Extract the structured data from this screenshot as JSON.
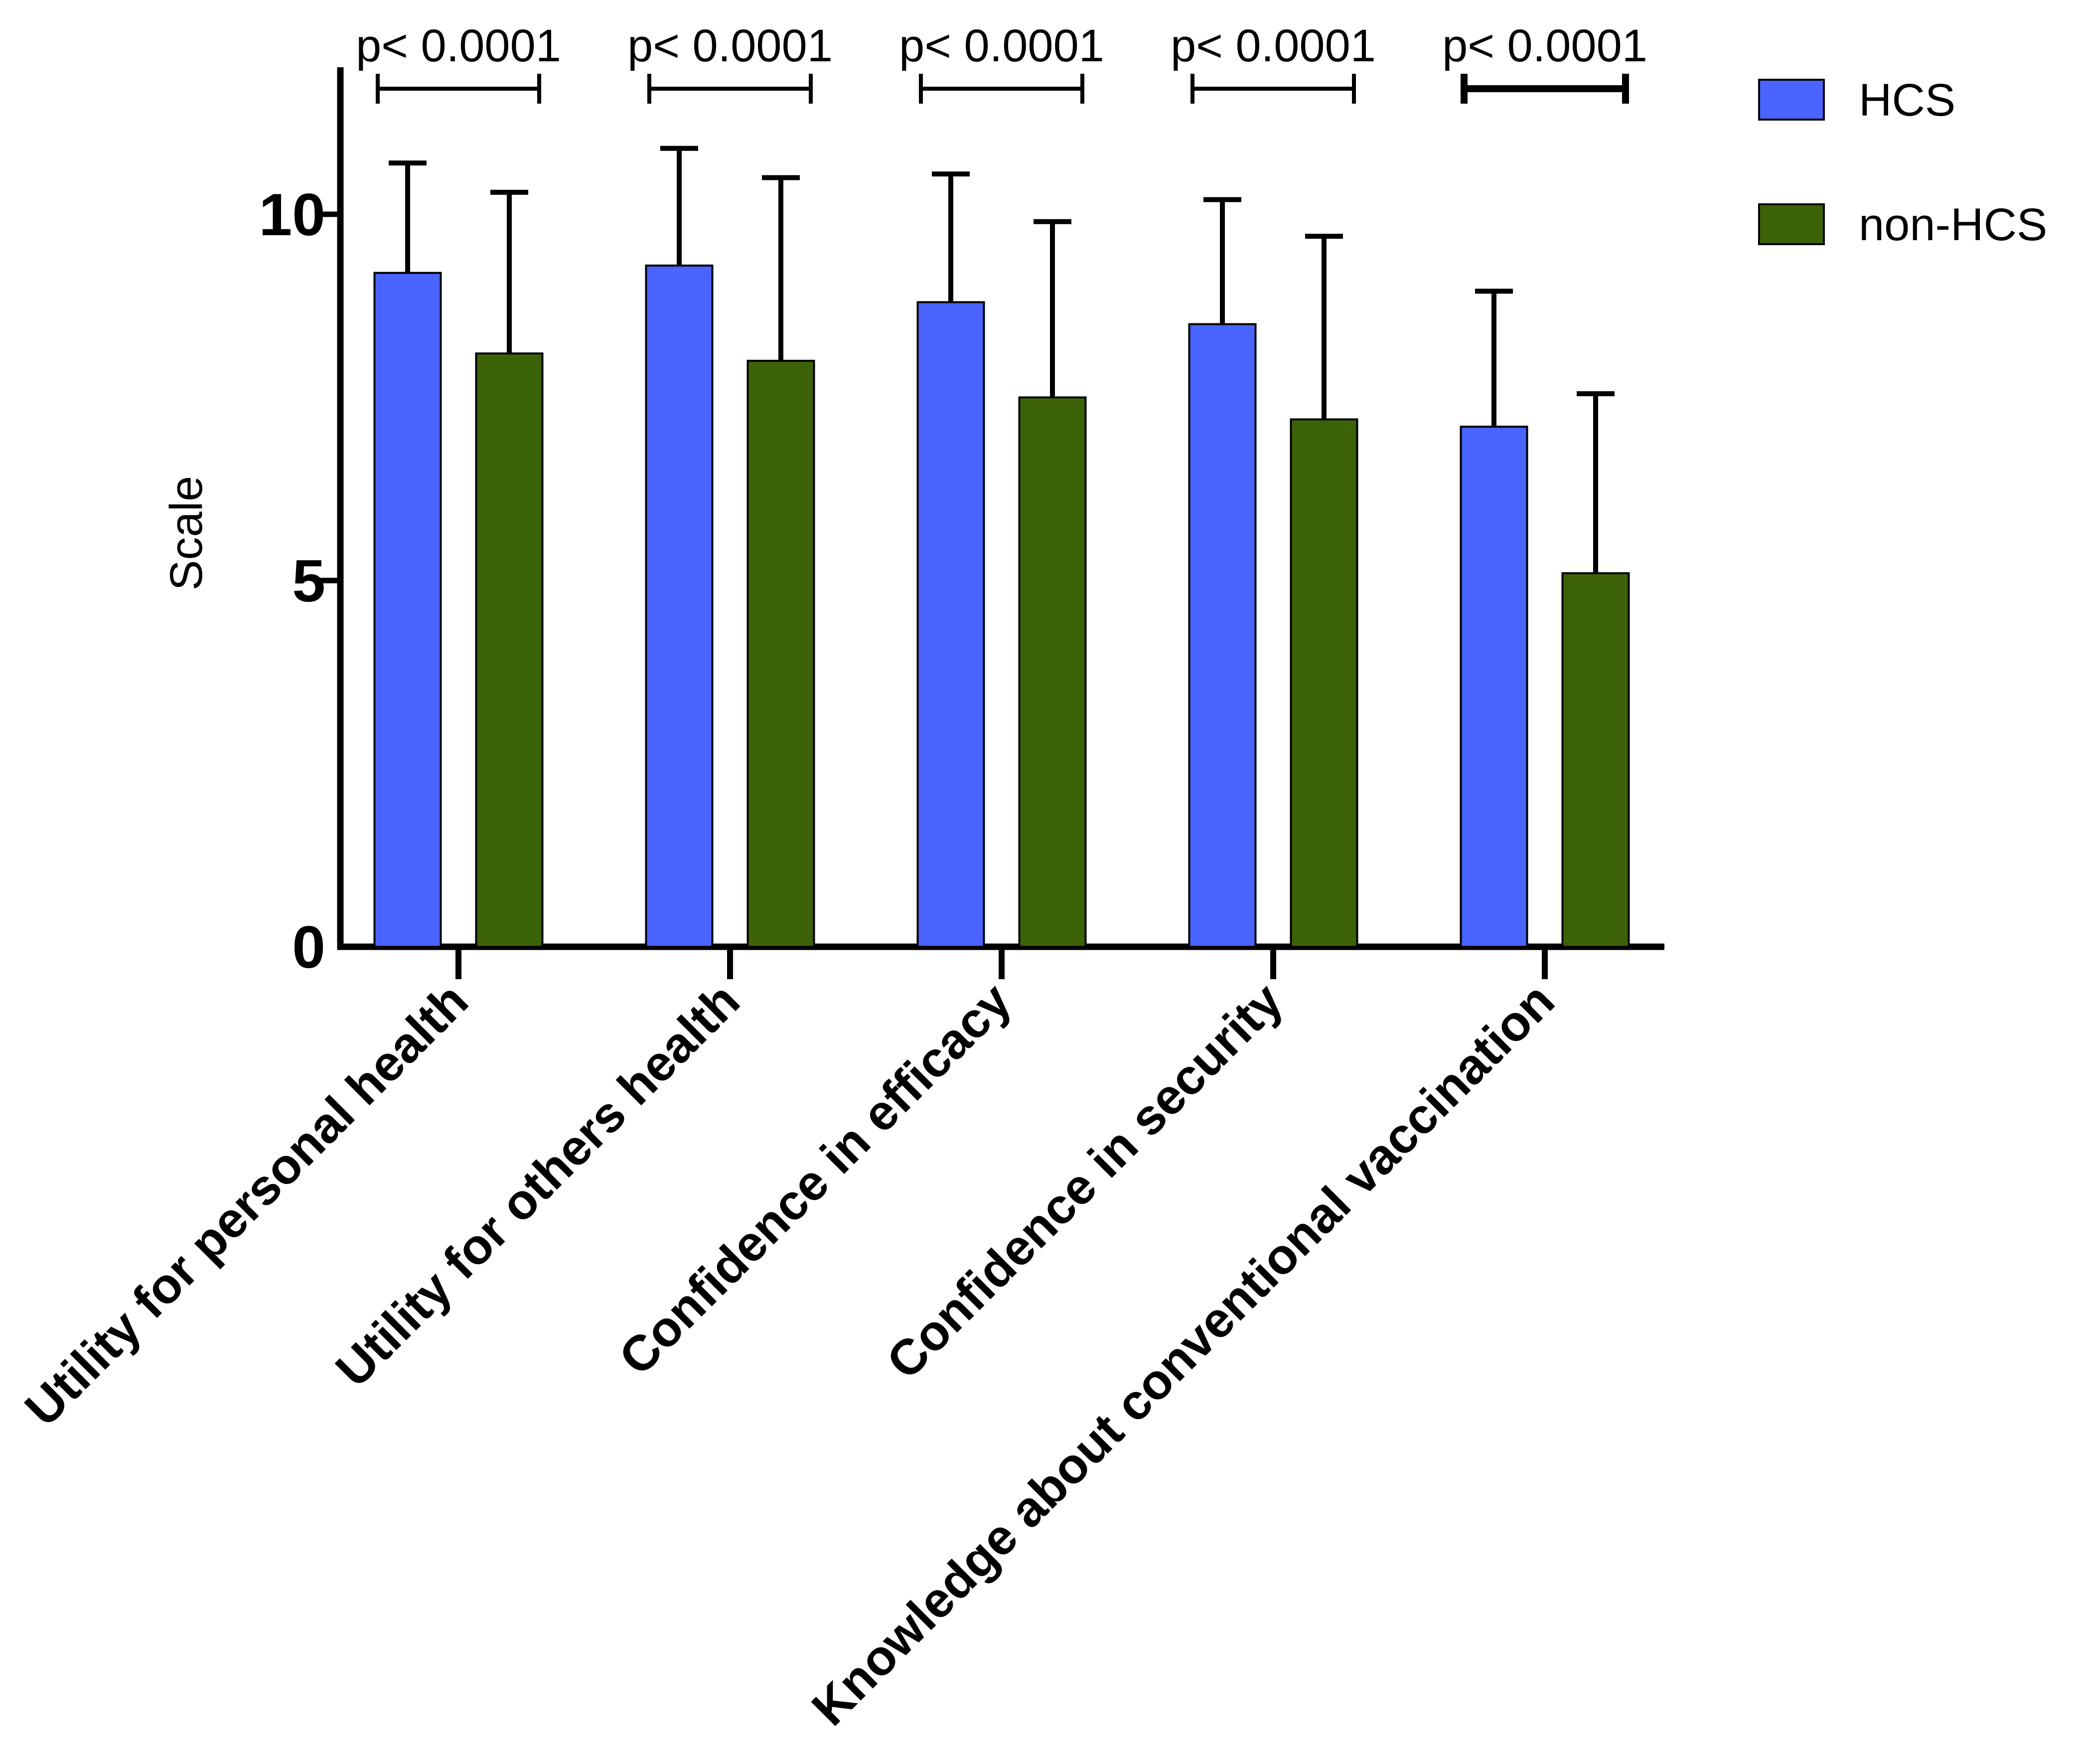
{
  "chart_data": {
    "type": "bar",
    "title": "",
    "xlabel": "",
    "ylabel": "Scale",
    "ylim": [
      0,
      12
    ],
    "yticks": [
      0,
      5,
      10
    ],
    "grid": false,
    "legend_position": "top-right",
    "categories": [
      "Utility for personal health",
      "Utility for others health",
      "Confidence in efficacy",
      "Confidence in security",
      "Knowledge about conventional vaccination"
    ],
    "series": [
      {
        "name": "HCS",
        "color": "#4a64ff",
        "values": [
          9.2,
          9.3,
          8.8,
          8.5,
          7.1
        ],
        "error": [
          1.5,
          1.6,
          1.75,
          1.7,
          1.85
        ]
      },
      {
        "name": "non-HCS",
        "color": "#3d6309",
        "values": [
          8.1,
          8.0,
          7.5,
          7.2,
          5.1
        ],
        "error": [
          2.2,
          2.5,
          2.4,
          2.5,
          2.45
        ]
      }
    ],
    "significance": [
      {
        "label": "p< 0.0001"
      },
      {
        "label": "p< 0.0001"
      },
      {
        "label": "p< 0.0001"
      },
      {
        "label": "p< 0.0001"
      },
      {
        "label": "p< 0.0001"
      }
    ]
  }
}
